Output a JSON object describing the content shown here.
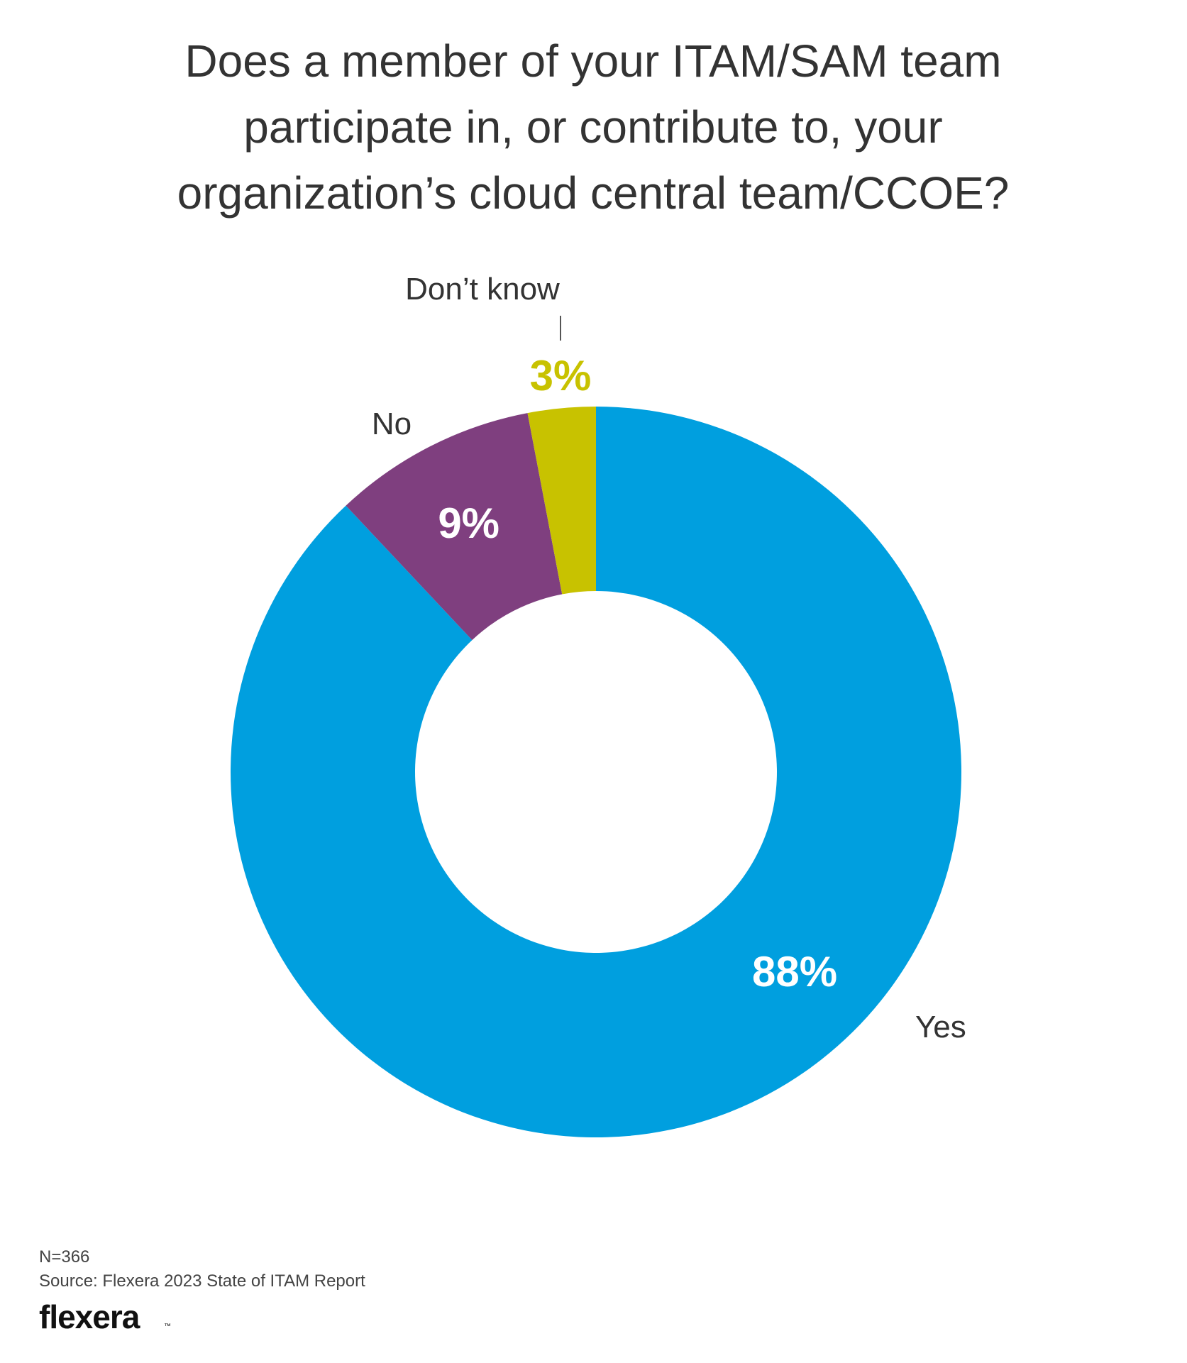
{
  "title_lines": [
    "Does a member of your ITAM/SAM team",
    "participate in, or contribute to, your",
    "organization’s cloud central team/CCOE?"
  ],
  "chart_data": {
    "type": "pie",
    "subtype": "donut",
    "title": "Does a member of your ITAM/SAM team participate in, or contribute to, your organization’s cloud central team/CCOE?",
    "slices": [
      {
        "label": "Yes",
        "value": 88,
        "value_label": "88%",
        "color": "#009FDF"
      },
      {
        "label": "No",
        "value": 9,
        "value_label": "9%",
        "color": "#7F3F7F"
      },
      {
        "label": "Don’t know",
        "value": 3,
        "value_label": "3%",
        "color": "#C8C200"
      }
    ],
    "start_angle": "12 o'clock",
    "direction": "clockwise",
    "legend": "none"
  },
  "footer": {
    "sample": "N=366",
    "source": "Source: Flexera 2023 State of ITAM Report",
    "logo_text": "flexera",
    "logo_mark": "™"
  },
  "colors": {
    "text": "#333333",
    "yes": "#009FDF",
    "no": "#7F3F7F",
    "dont_know": "#C8C200"
  }
}
